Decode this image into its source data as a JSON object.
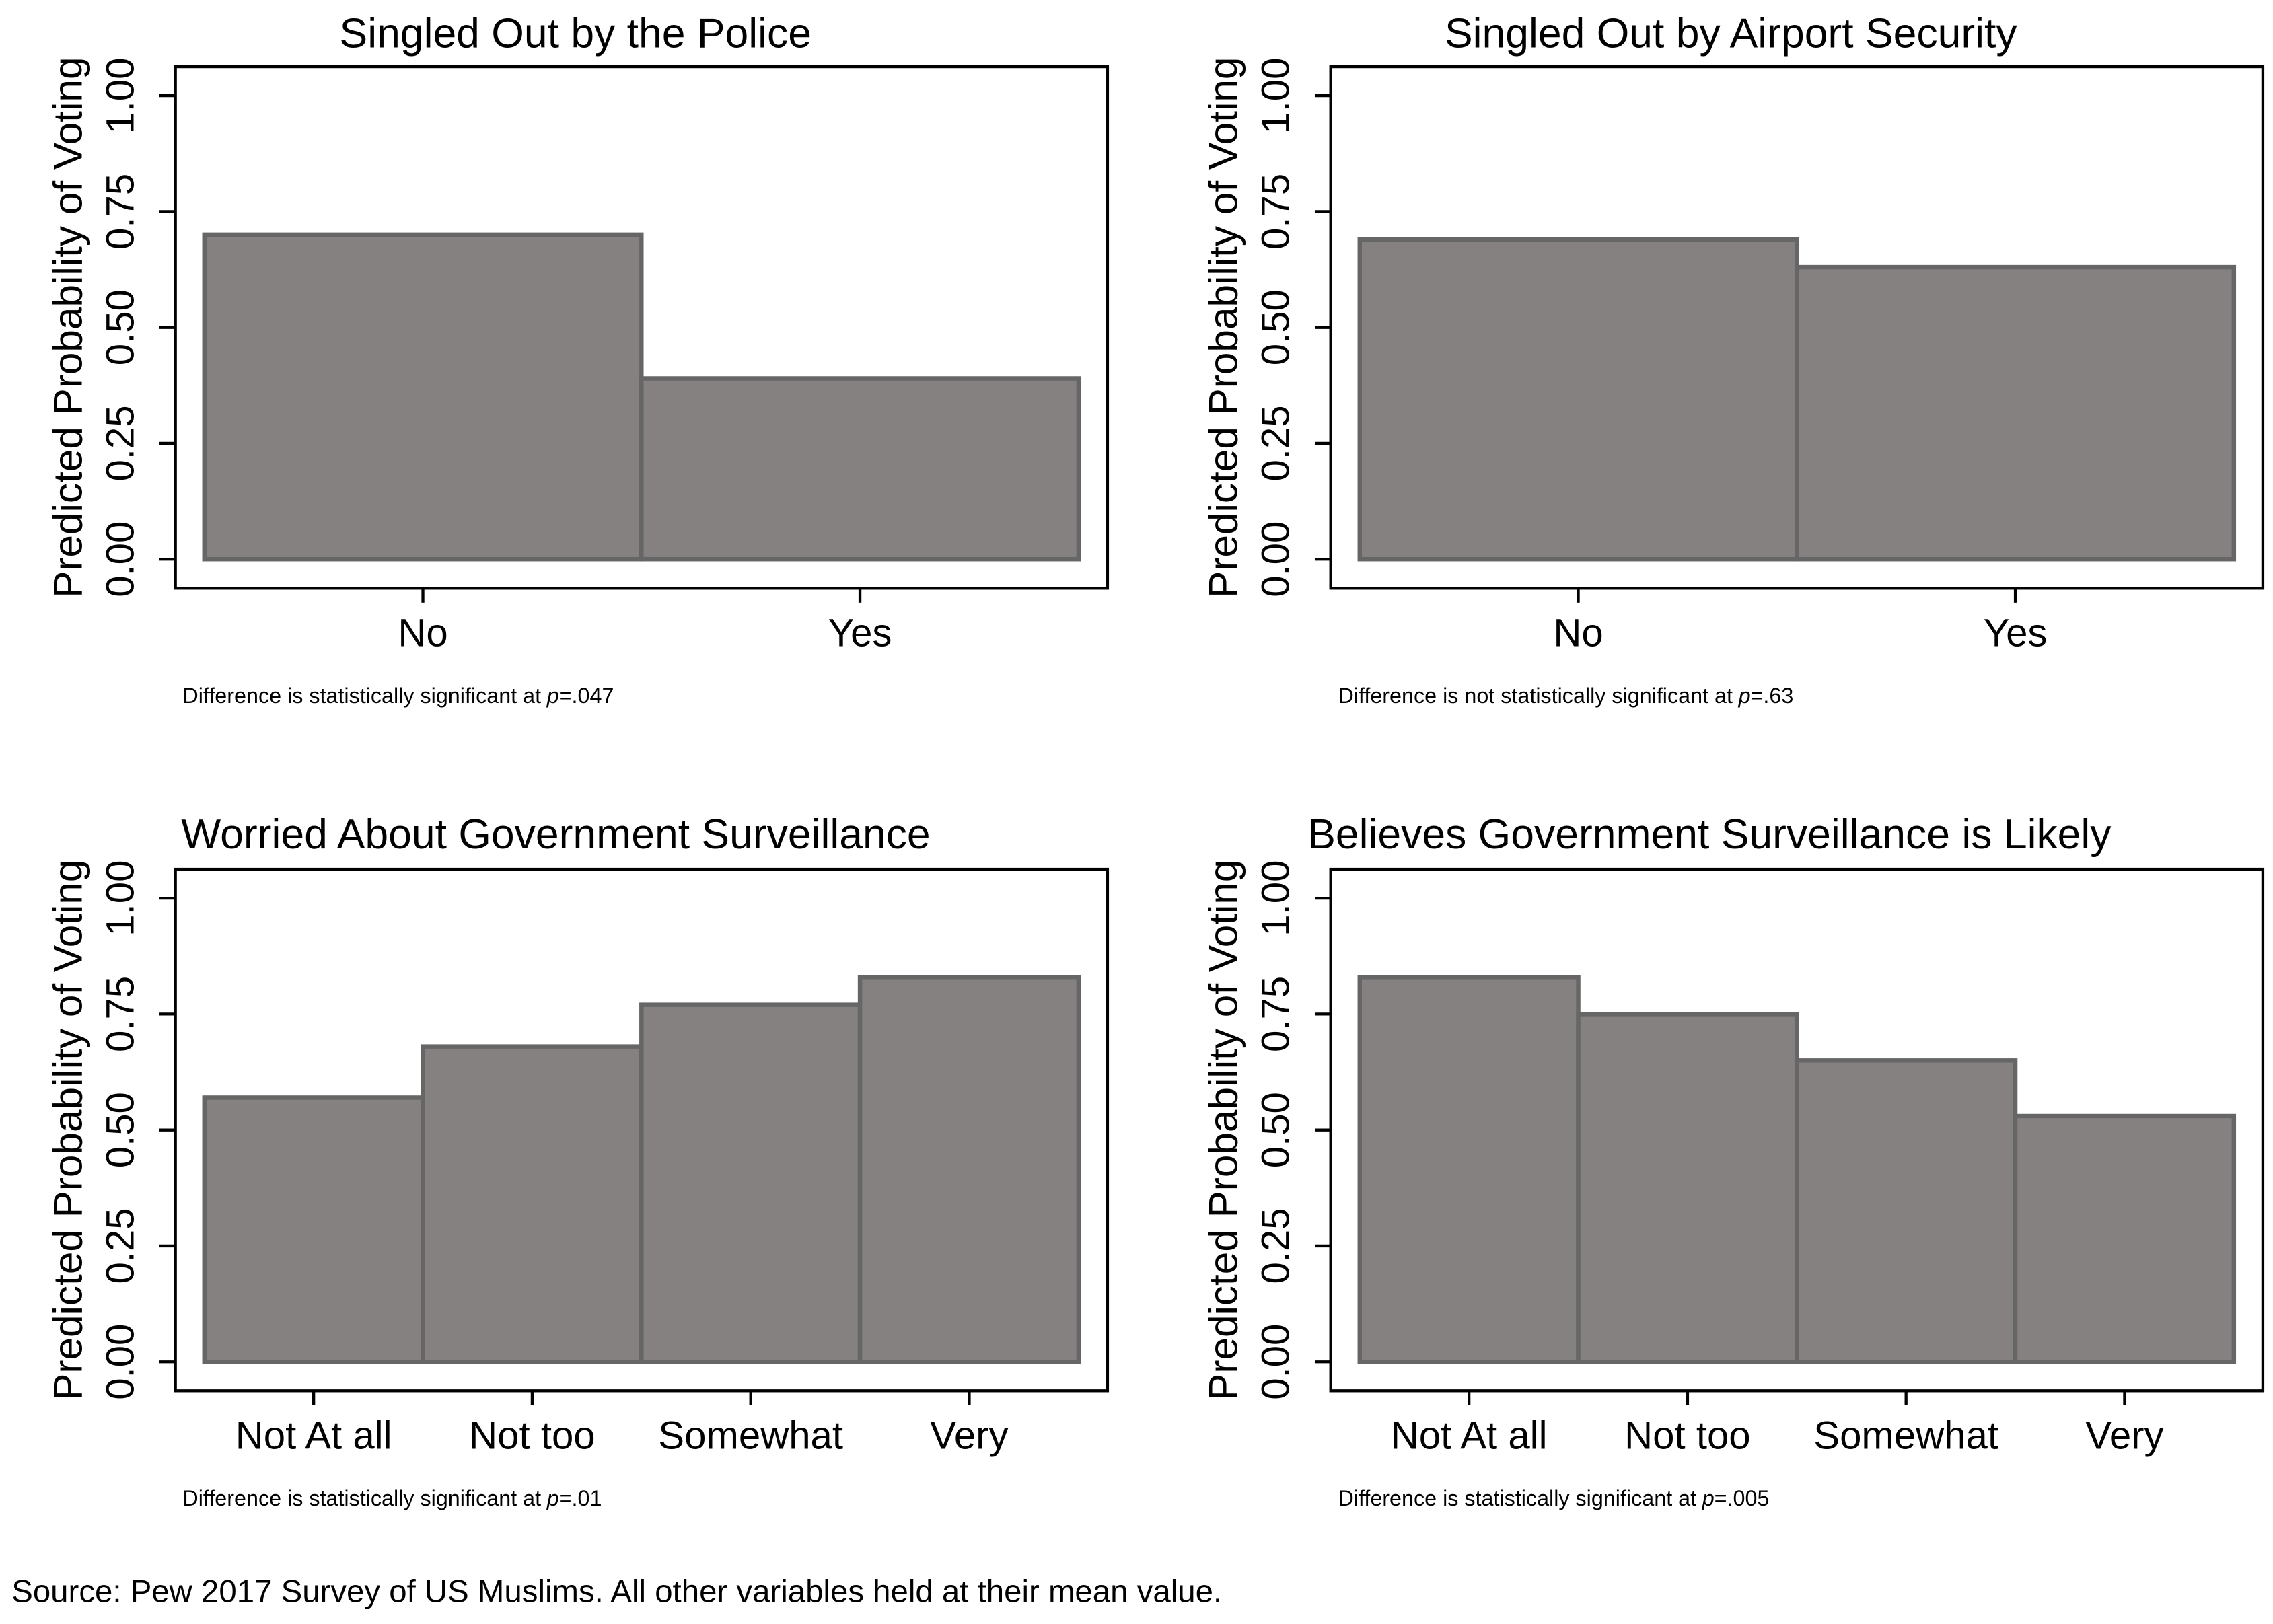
{
  "chart_data": [
    {
      "type": "bar",
      "title": "Singled Out by the Police",
      "y_label": "Predicted Probability of Voting",
      "categories": [
        "No",
        "Yes"
      ],
      "values": [
        0.7,
        0.39
      ],
      "color": "#858181",
      "ylim": [
        -0.0625,
        1.0625
      ],
      "yticks": [
        {
          "value": 0,
          "label": "0.00"
        },
        {
          "value": 0.25,
          "label": "0.25"
        },
        {
          "value": 0.5,
          "label": "0.50"
        },
        {
          "value": 0.75,
          "label": "0.75"
        },
        {
          "value": 1,
          "label": "1.00"
        }
      ],
      "note": [
        "Difference is statistically significant at",
        "p",
        "=.047"
      ]
    },
    {
      "type": "bar",
      "title": "Singled Out by Airport Security",
      "y_label": "Predicted Probability of Voting",
      "categories": [
        "No",
        "Yes"
      ],
      "values": [
        0.69,
        0.63
      ],
      "color": "#858181",
      "ylim": [
        -0.0625,
        1.0625
      ],
      "yticks": [
        {
          "value": 0,
          "label": "0.00"
        },
        {
          "value": 0.25,
          "label": "0.25"
        },
        {
          "value": 0.5,
          "label": "0.50"
        },
        {
          "value": 0.75,
          "label": "0.75"
        },
        {
          "value": 1,
          "label": "1.00"
        }
      ],
      "note": [
        "Difference is not statistically significant at",
        "p",
        "=.63"
      ]
    },
    {
      "type": "bar",
      "title": "Worried About Government Surveillance",
      "y_label": "Predicted Probability of Voting",
      "categories": [
        "Not At all",
        "Not too",
        "Somewhat",
        "Very"
      ],
      "values": [
        0.57,
        0.68,
        0.77,
        0.83
      ],
      "color": "#858181",
      "ylim": [
        -0.0625,
        1.0625
      ],
      "yticks": [
        {
          "value": 0,
          "label": "0.00"
        },
        {
          "value": 0.25,
          "label": "0.25"
        },
        {
          "value": 0.5,
          "label": "0.50"
        },
        {
          "value": 0.75,
          "label": "0.75"
        },
        {
          "value": 1,
          "label": "1.00"
        }
      ],
      "note": [
        "Difference is statistically significant at",
        "p",
        "=.01"
      ]
    },
    {
      "type": "bar",
      "title": "Believes Government Surveillance is Likely",
      "y_label": "Predicted Probability of Voting",
      "categories": [
        "Not At all",
        "Not too",
        "Somewhat",
        "Very"
      ],
      "values": [
        0.83,
        0.75,
        0.65,
        0.53
      ],
      "color": "#858181",
      "ylim": [
        -0.0625,
        1.0625
      ],
      "yticks": [
        {
          "value": 0,
          "label": "0.00"
        },
        {
          "value": 0.25,
          "label": "0.25"
        },
        {
          "value": 0.5,
          "label": "0.50"
        },
        {
          "value": 0.75,
          "label": "0.75"
        },
        {
          "value": 1,
          "label": "1.00"
        }
      ],
      "note": [
        "Difference is statistically significant at",
        "p",
        "=.005"
      ]
    }
  ],
  "source": "Source: Pew 2017 Survey of US Muslims. All other variables held at their mean value."
}
